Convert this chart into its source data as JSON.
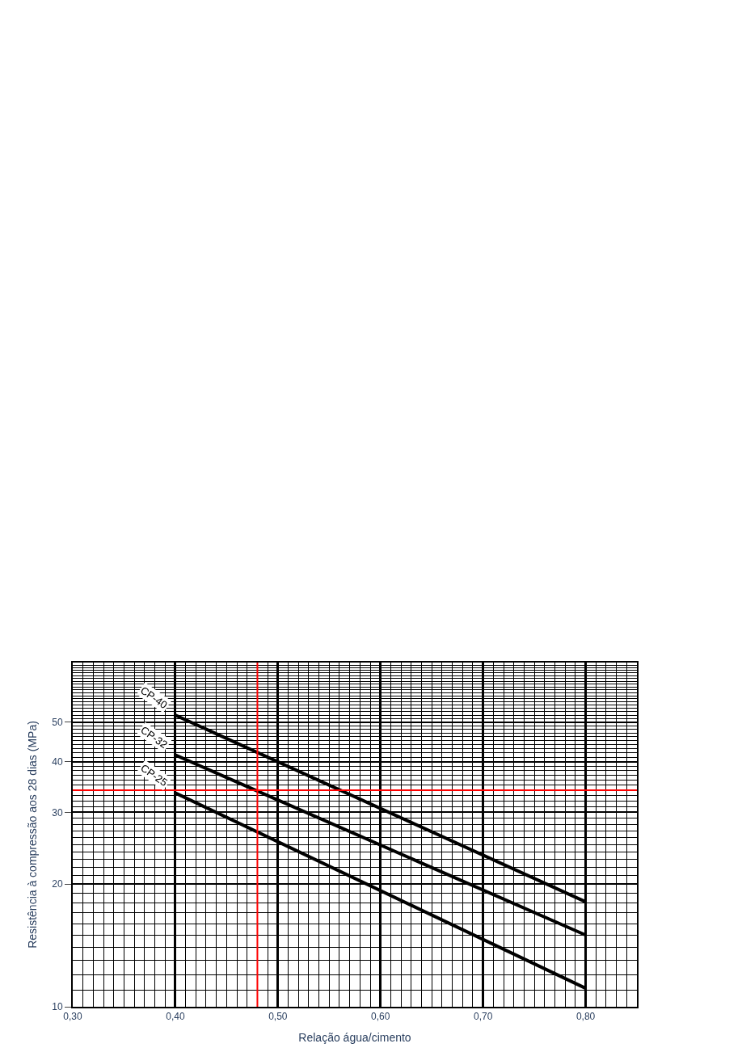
{
  "chart_data": {
    "type": "line",
    "xlabel": "Relação água/cimento",
    "ylabel": "Resistência à compressão aos 28 dias (MPa)",
    "x": [
      0.4,
      0.8
    ],
    "series": [
      {
        "name": "CP-40",
        "color": "#000000",
        "values": [
          52,
          18.1
        ]
      },
      {
        "name": "CP-32",
        "color": "#000000",
        "values": [
          41.5,
          15
        ]
      },
      {
        "name": "CP-25",
        "color": "#000000",
        "values": [
          33.5,
          11.1
        ]
      }
    ],
    "xlim": [
      0.3,
      0.85
    ],
    "ylim": [
      10,
      70
    ],
    "xticks": [
      {
        "value": 0.3,
        "label": "0,30"
      },
      {
        "value": 0.4,
        "label": "0,40"
      },
      {
        "value": 0.5,
        "label": "0,50"
      },
      {
        "value": 0.6,
        "label": "0,60"
      },
      {
        "value": 0.7,
        "label": "0,70"
      },
      {
        "value": 0.8,
        "label": "0,80"
      }
    ],
    "yticks": [
      10,
      20,
      30,
      40,
      50
    ],
    "log": "y",
    "grid": true,
    "marker": "none",
    "line_style": "solid",
    "legend": false,
    "ref_lines": [
      {
        "axis": "y",
        "value": 34,
        "label": null,
        "color": "#ff0000"
      },
      {
        "axis": "x",
        "value": 0.48,
        "label": null,
        "color": "#ff0000"
      }
    ]
  }
}
